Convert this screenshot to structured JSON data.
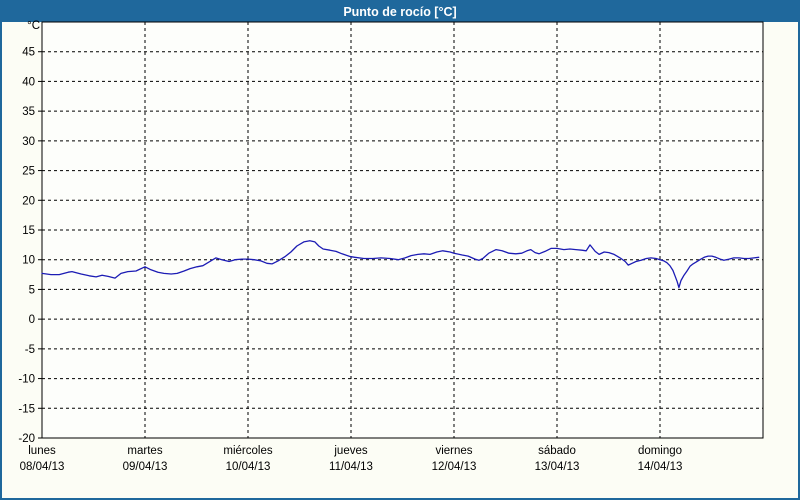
{
  "title": "Punto de rocío [°C]",
  "colors": {
    "titlebar": "#1f689c",
    "frame_border": "#1f689c",
    "background": "#fcfdf5",
    "plot_background": "#fdfefb",
    "grid": "#000000",
    "axis": "#000000",
    "text": "#000000",
    "line": "#1c1cb4"
  },
  "y_axis": {
    "unit_label": "°C",
    "min": -20,
    "max": 50,
    "tick_step": 5,
    "tick_labels": [
      "45",
      "40",
      "35",
      "30",
      "25",
      "20",
      "15",
      "10",
      "5",
      "0",
      "-5",
      "-10",
      "-15",
      "-20"
    ]
  },
  "x_axis": {
    "days": [
      {
        "name": "lunes",
        "date": "08/04/13"
      },
      {
        "name": "martes",
        "date": "09/04/13"
      },
      {
        "name": "miércoles",
        "date": "10/04/13"
      },
      {
        "name": "jueves",
        "date": "11/04/13"
      },
      {
        "name": "viernes",
        "date": "12/04/13"
      },
      {
        "name": "sábado",
        "date": "13/04/13"
      },
      {
        "name": "domingo",
        "date": "14/04/13"
      }
    ]
  },
  "chart_data": {
    "type": "line",
    "title": "Punto de rocío [°C]",
    "series_name": "Punto de rocío",
    "xlabel": "",
    "ylabel": "°C",
    "x_unit": "hours since 08/04/13 00:00",
    "x_range": [
      0,
      168
    ],
    "ylim": [
      -20,
      50
    ],
    "grid": true,
    "legend": "none",
    "line_color": "#1c1cb4",
    "points": [
      [
        0,
        7.7
      ],
      [
        2.1,
        7.5
      ],
      [
        4,
        7.5
      ],
      [
        6.1,
        7.9
      ],
      [
        7,
        8.0
      ],
      [
        9.1,
        7.6
      ],
      [
        11,
        7.3
      ],
      [
        12.6,
        7.1
      ],
      [
        14,
        7.4
      ],
      [
        15.4,
        7.2
      ],
      [
        17,
        6.9
      ],
      [
        18.4,
        7.7
      ],
      [
        20,
        8.0
      ],
      [
        21.9,
        8.1
      ],
      [
        24,
        8.8
      ],
      [
        25.4,
        8.3
      ],
      [
        27,
        7.9
      ],
      [
        28.4,
        7.7
      ],
      [
        30.1,
        7.6
      ],
      [
        31.5,
        7.7
      ],
      [
        33.1,
        8.1
      ],
      [
        34.5,
        8.5
      ],
      [
        36.1,
        8.8
      ],
      [
        37.5,
        9.0
      ],
      [
        38.9,
        9.6
      ],
      [
        40.5,
        10.3
      ],
      [
        41.9,
        10.0
      ],
      [
        43.6,
        9.7
      ],
      [
        45,
        10.0
      ],
      [
        46.6,
        10.1
      ],
      [
        48,
        10.1
      ],
      [
        49.4,
        10.0
      ],
      [
        51,
        9.8
      ],
      [
        52.4,
        9.4
      ],
      [
        53.6,
        9.3
      ],
      [
        55,
        9.8
      ],
      [
        56.6,
        10.5
      ],
      [
        58,
        11.3
      ],
      [
        59.4,
        12.3
      ],
      [
        61,
        13.0
      ],
      [
        62.4,
        13.2
      ],
      [
        63.6,
        13.0
      ],
      [
        64.5,
        12.3
      ],
      [
        65.5,
        11.8
      ],
      [
        67.1,
        11.6
      ],
      [
        68.5,
        11.4
      ],
      [
        69.9,
        11.0
      ],
      [
        71.5,
        10.6
      ],
      [
        72,
        10.5
      ],
      [
        72.9,
        10.4
      ],
      [
        75,
        10.2
      ],
      [
        77.1,
        10.2
      ],
      [
        79,
        10.3
      ],
      [
        81.1,
        10.2
      ],
      [
        83,
        10.0
      ],
      [
        84.6,
        10.3
      ],
      [
        86,
        10.7
      ],
      [
        87.6,
        10.9
      ],
      [
        89,
        11.0
      ],
      [
        90.4,
        10.9
      ],
      [
        92,
        11.3
      ],
      [
        93.4,
        11.5
      ],
      [
        95.1,
        11.3
      ],
      [
        96,
        11.1
      ],
      [
        97.9,
        10.8
      ],
      [
        99.3,
        10.6
      ],
      [
        100.9,
        10.1
      ],
      [
        101.8,
        9.9
      ],
      [
        102.7,
        10.2
      ],
      [
        104.1,
        11.1
      ],
      [
        105.8,
        11.7
      ],
      [
        107.2,
        11.5
      ],
      [
        108.8,
        11.1
      ],
      [
        110.4,
        11.0
      ],
      [
        111.8,
        11.1
      ],
      [
        113,
        11.5
      ],
      [
        113.9,
        11.7
      ],
      [
        114.9,
        11.2
      ],
      [
        115.8,
        11.0
      ],
      [
        117.2,
        11.4
      ],
      [
        118.6,
        11.9
      ],
      [
        120,
        11.9
      ],
      [
        121.6,
        11.7
      ],
      [
        123,
        11.8
      ],
      [
        124.4,
        11.7
      ],
      [
        125.8,
        11.6
      ],
      [
        126.8,
        11.5
      ],
      [
        127.7,
        12.5
      ],
      [
        128.9,
        11.4
      ],
      [
        129.8,
        10.9
      ],
      [
        131,
        11.3
      ],
      [
        132.1,
        11.2
      ],
      [
        133.3,
        10.9
      ],
      [
        134.7,
        10.3
      ],
      [
        135.9,
        9.7
      ],
      [
        136.6,
        9.1
      ],
      [
        137.5,
        9.4
      ],
      [
        138.4,
        9.7
      ],
      [
        139.6,
        9.9
      ],
      [
        140.8,
        10.2
      ],
      [
        141.9,
        10.3
      ],
      [
        143.1,
        10.2
      ],
      [
        144,
        10.0
      ],
      [
        144.9,
        9.8
      ],
      [
        145.6,
        9.5
      ],
      [
        146.3,
        9.0
      ],
      [
        147,
        8.2
      ],
      [
        147.5,
        7.3
      ],
      [
        148,
        6.3
      ],
      [
        148.4,
        5.3
      ],
      [
        148.9,
        6.5
      ],
      [
        149.6,
        7.4
      ],
      [
        150.3,
        8.1
      ],
      [
        151,
        8.9
      ],
      [
        151.7,
        9.3
      ],
      [
        152.4,
        9.6
      ],
      [
        153.3,
        10.0
      ],
      [
        154.3,
        10.4
      ],
      [
        155.2,
        10.6
      ],
      [
        156.1,
        10.6
      ],
      [
        157,
        10.4
      ],
      [
        158,
        10.1
      ],
      [
        158.9,
        9.9
      ],
      [
        160.1,
        10.1
      ],
      [
        161.2,
        10.3
      ],
      [
        162.4,
        10.3
      ],
      [
        163.6,
        10.2
      ],
      [
        164.7,
        10.2
      ],
      [
        165.9,
        10.3
      ],
      [
        167,
        10.4
      ]
    ]
  }
}
